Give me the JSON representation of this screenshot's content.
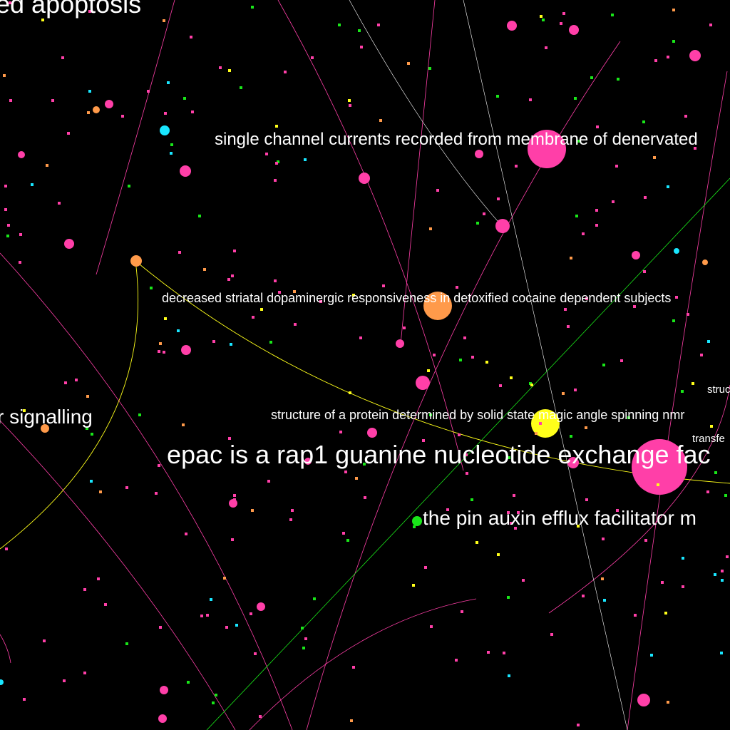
{
  "colors": {
    "background": "#000000",
    "pink": "#ff3fa8",
    "orange": "#ff9a4a",
    "yellow": "#ffff1a",
    "green": "#19e619",
    "cyan": "#19e6ff",
    "white": "#ffffff"
  },
  "labels": {
    "apoptosis": "ed apoptosis",
    "single_channel": "single channel currents recorded from membrane of denervated",
    "striatal": "decreased striatal dopaminergic responsiveness in detoxified cocaine dependent subjects",
    "signalling": "r signalling",
    "solid_state": "structure of a protein determined by solid state magic angle spinning nmr",
    "epac": "epac is a rap1 guanine nucleotide exchange fac",
    "pin_auxin": "the pin auxin efflux facilitator m",
    "struc": "struc",
    "transfer": "transfe"
  }
}
